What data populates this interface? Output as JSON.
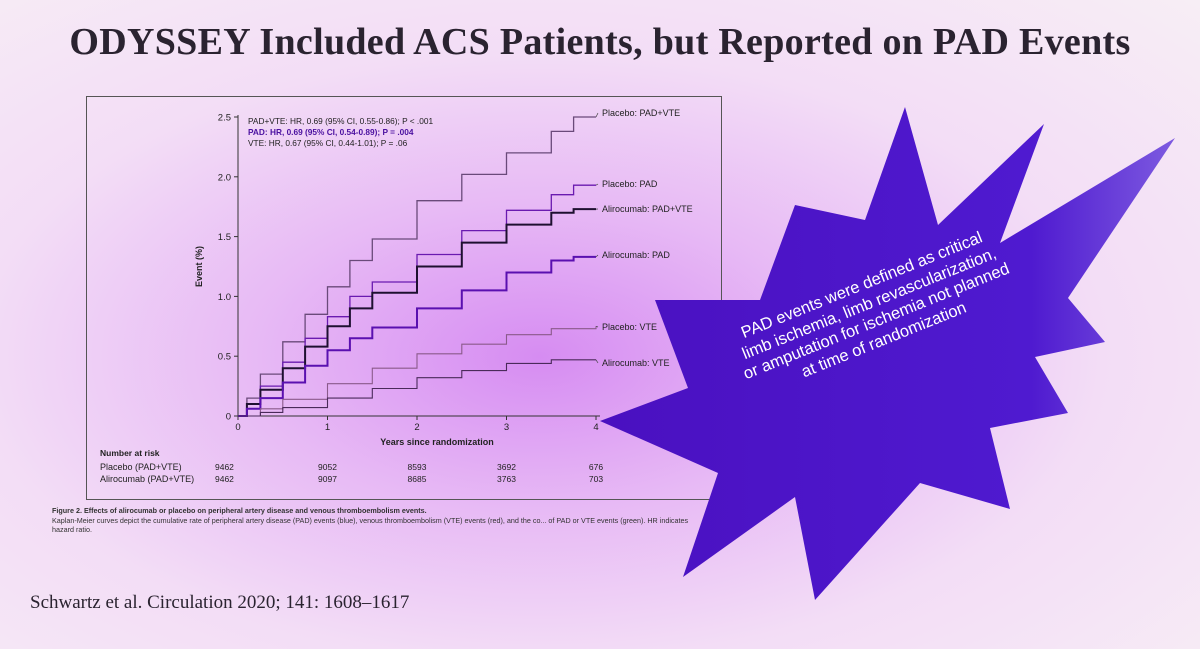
{
  "slide": {
    "title": "ODYSSEY Included ACS Patients, but Reported on PAD Events",
    "citation": "Schwartz et al. Circulation 2020; 141: 1608–1617"
  },
  "figure": {
    "caption_title": "Figure 2. Effects of alirocumab or placebo on peripheral artery disease and venous thromboembolism events.",
    "caption_body": "Kaplan-Meier curves depict the cumulative rate of peripheral artery disease (PAD) events (blue), venous thromboembolism (VTE) events (red), and the co... of PAD or VTE events (green). HR indicates hazard ratio."
  },
  "callout": {
    "text": "PAD events were defined as critical limb ischemia, limb revascularization, or amputation for ischemia not planned at time of randomization",
    "fill": "#4a10c0"
  },
  "chart_data": {
    "type": "line",
    "xlabel": "Years since randomization",
    "ylabel": "Event (%)",
    "xlim": [
      0,
      4
    ],
    "ylim": [
      0,
      2.5
    ],
    "xticks": [
      0,
      1,
      2,
      3,
      4
    ],
    "yticks": [
      0,
      0.5,
      1.0,
      1.5,
      2.0,
      2.5
    ],
    "ytick_labels": [
      "0",
      "0.5",
      "1.0",
      "1.5",
      "2.0",
      "2.5"
    ],
    "annotations": [
      "PAD+VTE: HR, 0.69 (95% CI, 0.55-0.86); P < .001",
      "PAD: HR, 0.69 (95% CI, 0.54-0.89); P = .004",
      "VTE: HR, 0.67 (95% CI, 0.44-1.01); P = .06"
    ],
    "series": [
      {
        "name": "Placebo: PAD+VTE",
        "color": "#6a4a7a",
        "width": 1.3,
        "x": [
          0,
          0.1,
          0.25,
          0.5,
          0.75,
          1.0,
          1.25,
          1.5,
          2.0,
          2.5,
          3.0,
          3.5,
          3.75,
          4.0
        ],
        "y": [
          0,
          0.15,
          0.35,
          0.62,
          0.85,
          1.08,
          1.3,
          1.48,
          1.8,
          2.02,
          2.2,
          2.38,
          2.5,
          2.5
        ]
      },
      {
        "name": "Placebo: PAD",
        "color": "#6a1ab0",
        "width": 1.3,
        "x": [
          0,
          0.1,
          0.25,
          0.5,
          0.75,
          1.0,
          1.25,
          1.5,
          2.0,
          2.5,
          3.0,
          3.5,
          3.75,
          4.0
        ],
        "y": [
          0,
          0.1,
          0.25,
          0.45,
          0.65,
          0.83,
          1.0,
          1.12,
          1.35,
          1.55,
          1.72,
          1.85,
          1.93,
          1.93
        ]
      },
      {
        "name": "Alirocumab: PAD+VTE",
        "color": "#1e1030",
        "width": 2.0,
        "x": [
          0,
          0.1,
          0.25,
          0.5,
          0.75,
          1.0,
          1.25,
          1.5,
          2.0,
          2.5,
          3.0,
          3.5,
          3.75,
          4.0
        ],
        "y": [
          0,
          0.1,
          0.22,
          0.4,
          0.58,
          0.75,
          0.9,
          1.03,
          1.25,
          1.45,
          1.6,
          1.7,
          1.73,
          1.73
        ]
      },
      {
        "name": "Alirocumab: PAD",
        "color": "#5a10b0",
        "width": 2.0,
        "x": [
          0,
          0.1,
          0.25,
          0.5,
          0.75,
          1.0,
          1.25,
          1.5,
          2.0,
          2.5,
          3.0,
          3.5,
          3.75,
          4.0
        ],
        "y": [
          0,
          0.06,
          0.15,
          0.28,
          0.42,
          0.55,
          0.65,
          0.74,
          0.9,
          1.05,
          1.2,
          1.3,
          1.33,
          1.33
        ]
      },
      {
        "name": "Placebo: VTE",
        "color": "#8a5a8a",
        "width": 1.1,
        "x": [
          0,
          0.25,
          0.5,
          1.0,
          1.5,
          2.0,
          2.5,
          3.0,
          3.5,
          4.0
        ],
        "y": [
          0,
          0.06,
          0.14,
          0.27,
          0.4,
          0.52,
          0.6,
          0.68,
          0.73,
          0.75
        ]
      },
      {
        "name": "Alirocumab: VTE",
        "color": "#4a2a5a",
        "width": 1.1,
        "x": [
          0,
          0.25,
          0.5,
          1.0,
          1.5,
          2.0,
          2.5,
          3.0,
          3.5,
          4.0
        ],
        "y": [
          0,
          0.03,
          0.07,
          0.15,
          0.23,
          0.32,
          0.38,
          0.44,
          0.47,
          0.47
        ]
      }
    ],
    "risk_table": {
      "title": "Number at risk",
      "rows": [
        {
          "label": "Placebo (PAD+VTE)",
          "values": [
            "9462",
            "9052",
            "8593",
            "3692",
            "676"
          ]
        },
        {
          "label": "Alirocumab (PAD+VTE)",
          "values": [
            "9462",
            "9097",
            "8685",
            "3763",
            "703"
          ]
        }
      ]
    }
  }
}
